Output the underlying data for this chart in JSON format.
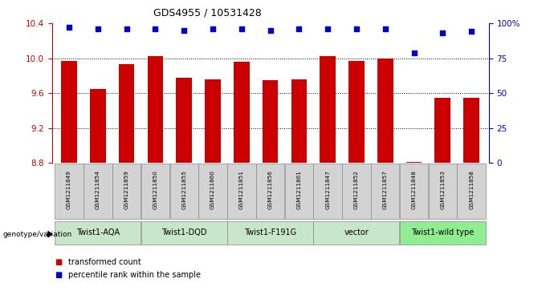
{
  "title": "GDS4955 / 10531428",
  "samples": [
    "GSM1211849",
    "GSM1211854",
    "GSM1211859",
    "GSM1211850",
    "GSM1211855",
    "GSM1211860",
    "GSM1211851",
    "GSM1211856",
    "GSM1211861",
    "GSM1211847",
    "GSM1211852",
    "GSM1211857",
    "GSM1211848",
    "GSM1211853",
    "GSM1211858"
  ],
  "bar_values": [
    9.97,
    9.65,
    9.93,
    10.02,
    9.78,
    9.76,
    9.96,
    9.75,
    9.76,
    10.02,
    9.97,
    10.0,
    8.81,
    9.55,
    9.55
  ],
  "percentile_values": [
    97,
    96,
    96,
    96,
    95,
    96,
    96,
    95,
    96,
    96,
    96,
    96,
    79,
    93,
    94
  ],
  "groups": [
    {
      "label": "Twist1-AQA",
      "start": 0,
      "end": 3,
      "color": "#c8e6c9"
    },
    {
      "label": "Twist1-DQD",
      "start": 3,
      "end": 6,
      "color": "#c8e6c9"
    },
    {
      "label": "Twist1-F191G",
      "start": 6,
      "end": 9,
      "color": "#c8e6c9"
    },
    {
      "label": "vector",
      "start": 9,
      "end": 12,
      "color": "#c8e6c9"
    },
    {
      "label": "Twist1-wild type",
      "start": 12,
      "end": 15,
      "color": "#90ee90"
    }
  ],
  "ylim_left": [
    8.8,
    10.4
  ],
  "ylim_right": [
    0,
    100
  ],
  "yticks_left": [
    8.8,
    9.2,
    9.6,
    10.0,
    10.4
  ],
  "yticks_right": [
    0,
    25,
    50,
    75,
    100
  ],
  "bar_color": "#cc0000",
  "dot_color": "#0000cc",
  "bg_color": "#ffffff",
  "bar_width": 0.55,
  "legend_red": "transformed count",
  "legend_blue": "percentile rank within the sample",
  "genotype_label": "genotype/variation",
  "hline_vals": [
    10.0,
    9.6,
    9.2
  ],
  "sample_box_color": "#d3d3d3",
  "group_box_color_default": "#c8e6c9",
  "group_box_color_last": "#90ee90"
}
